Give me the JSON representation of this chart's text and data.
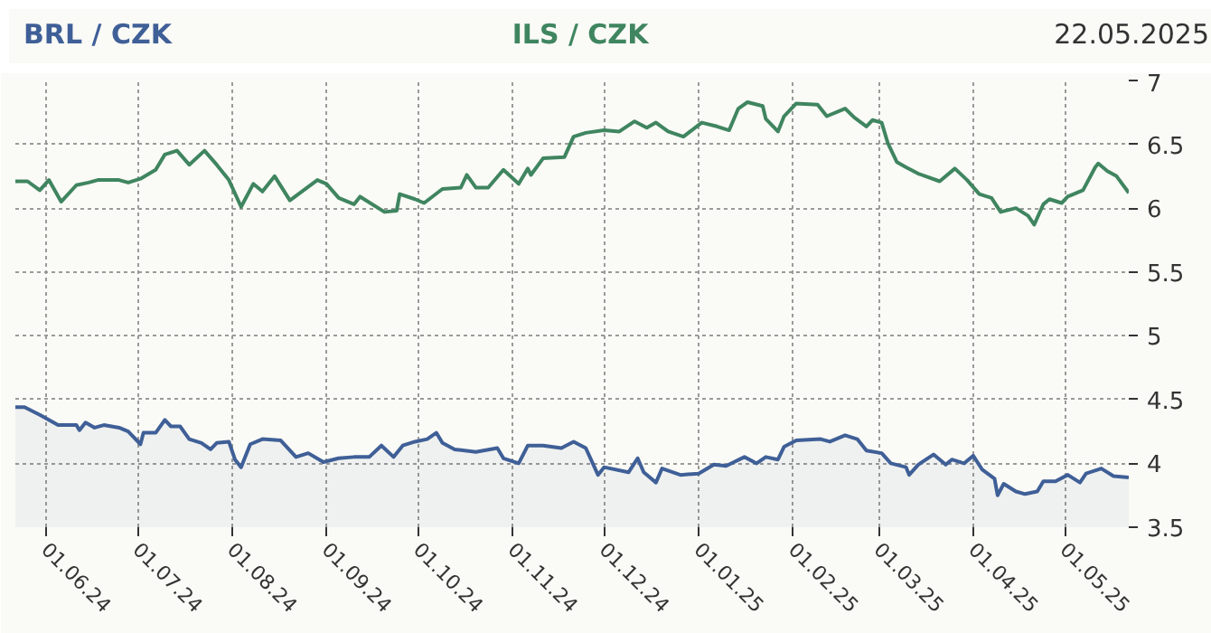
{
  "chart_data": {
    "type": "line",
    "title": "22.05.2025",
    "xlim": [
      "2024-05-22",
      "2025-05-22"
    ],
    "xticks": [
      {
        "value": "2024-06-01",
        "label": "01.06.24"
      },
      {
        "value": "2024-07-01",
        "label": "01.07.24"
      },
      {
        "value": "2024-08-01",
        "label": "01.08.24"
      },
      {
        "value": "2024-09-01",
        "label": "01.09.24"
      },
      {
        "value": "2024-10-01",
        "label": "01.10.24"
      },
      {
        "value": "2024-11-01",
        "label": "01.11.24"
      },
      {
        "value": "2024-12-01",
        "label": "01.12.24"
      },
      {
        "value": "2025-01-01",
        "label": "01.01.25"
      },
      {
        "value": "2025-02-01",
        "label": "01.02.25"
      },
      {
        "value": "2025-03-01",
        "label": "01.03.25"
      },
      {
        "value": "2025-04-01",
        "label": "01.04.25"
      },
      {
        "value": "2025-05-01",
        "label": "01.05.25"
      }
    ],
    "ylim": [
      3.5,
      7
    ],
    "yticks": [
      3.5,
      4,
      4.5,
      5,
      5.5,
      6,
      6.5,
      7
    ],
    "grid": true,
    "marker": "none",
    "line_style": "solid",
    "series": [
      {
        "name": "BRL / CZK",
        "type": "area",
        "color": "#3f5f97",
        "x": [
          "2024-05-22",
          "2024-05-25",
          "2024-05-30",
          "2024-06-05",
          "2024-06-11",
          "2024-06-12",
          "2024-06-14",
          "2024-06-17",
          "2024-06-20",
          "2024-06-25",
          "2024-06-28",
          "2024-07-02",
          "2024-07-03",
          "2024-07-07",
          "2024-07-10",
          "2024-07-12",
          "2024-07-15",
          "2024-07-18",
          "2024-07-22",
          "2024-07-25",
          "2024-07-27",
          "2024-07-31",
          "2024-08-02",
          "2024-08-04",
          "2024-08-07",
          "2024-08-11",
          "2024-08-17",
          "2024-08-22",
          "2024-08-26",
          "2024-08-31",
          "2024-09-05",
          "2024-09-10",
          "2024-09-15",
          "2024-09-19",
          "2024-09-23",
          "2024-09-26",
          "2024-09-30",
          "2024-10-04",
          "2024-10-07",
          "2024-10-09",
          "2024-10-13",
          "2024-10-20",
          "2024-10-27",
          "2024-10-29",
          "2024-11-03",
          "2024-11-06",
          "2024-11-11",
          "2024-11-17",
          "2024-11-21",
          "2024-11-25",
          "2024-11-29",
          "2024-12-01",
          "2024-12-09",
          "2024-12-12",
          "2024-12-14",
          "2024-12-18",
          "2024-12-20",
          "2024-12-26",
          "2025-01-01",
          "2025-01-06",
          "2025-01-10",
          "2025-01-16",
          "2025-01-20",
          "2025-01-23",
          "2025-01-27",
          "2025-01-29",
          "2025-02-02",
          "2025-02-10",
          "2025-02-13",
          "2025-02-18",
          "2025-02-22",
          "2025-02-25",
          "2025-03-02",
          "2025-03-05",
          "2025-03-10",
          "2025-03-11",
          "2025-03-14",
          "2025-03-19",
          "2025-03-23",
          "2025-03-25",
          "2025-03-29",
          "2025-04-01",
          "2025-04-04",
          "2025-04-08",
          "2025-04-09",
          "2025-04-11",
          "2025-04-15",
          "2025-04-18",
          "2025-04-22",
          "2025-04-24",
          "2025-04-28",
          "2025-05-02",
          "2025-05-06",
          "2025-05-08",
          "2025-05-13",
          "2025-05-17",
          "2025-05-22"
        ],
        "values": [
          4.44,
          4.44,
          4.38,
          4.3,
          4.3,
          4.26,
          4.32,
          4.28,
          4.3,
          4.28,
          4.25,
          4.15,
          4.24,
          4.24,
          4.34,
          4.29,
          4.29,
          4.19,
          4.16,
          4.11,
          4.16,
          4.17,
          4.03,
          3.97,
          4.15,
          4.19,
          4.18,
          4.05,
          4.08,
          4.01,
          4.04,
          4.05,
          4.05,
          4.14,
          4.05,
          4.14,
          4.17,
          4.19,
          4.24,
          4.16,
          4.11,
          4.09,
          4.12,
          4.04,
          4.0,
          4.14,
          4.14,
          4.12,
          4.17,
          4.12,
          3.91,
          3.97,
          3.93,
          4.04,
          3.93,
          3.85,
          3.96,
          3.91,
          3.92,
          3.99,
          3.98,
          4.05,
          4.0,
          4.05,
          4.03,
          4.13,
          4.18,
          4.19,
          4.17,
          4.22,
          4.19,
          4.1,
          4.08,
          4.0,
          3.97,
          3.91,
          3.99,
          4.07,
          3.99,
          4.03,
          4.0,
          4.06,
          3.95,
          3.88,
          3.75,
          3.84,
          3.78,
          3.76,
          3.78,
          3.86,
          3.86,
          3.91,
          3.85,
          3.92,
          3.96,
          3.9,
          3.89
        ]
      },
      {
        "name": "ILS / CZK",
        "color": "#3f8560",
        "x": [
          "2024-05-22",
          "2024-05-26",
          "2024-05-30",
          "2024-06-02",
          "2024-06-06",
          "2024-06-11",
          "2024-06-15",
          "2024-06-18",
          "2024-06-25",
          "2024-06-28",
          "2024-07-02",
          "2024-07-07",
          "2024-07-10",
          "2024-07-14",
          "2024-07-18",
          "2024-07-23",
          "2024-07-27",
          "2024-07-31",
          "2024-08-04",
          "2024-08-08",
          "2024-08-11",
          "2024-08-15",
          "2024-08-20",
          "2024-08-29",
          "2024-09-01",
          "2024-09-05",
          "2024-09-10",
          "2024-09-12",
          "2024-09-20",
          "2024-09-24",
          "2024-09-25",
          "2024-09-30",
          "2024-10-03",
          "2024-10-09",
          "2024-10-15",
          "2024-10-17",
          "2024-10-20",
          "2024-10-24",
          "2024-10-29",
          "2024-11-03",
          "2024-11-06",
          "2024-11-07",
          "2024-11-11",
          "2024-11-18",
          "2024-11-21",
          "2024-11-25",
          "2024-12-01",
          "2024-12-06",
          "2024-12-11",
          "2024-12-15",
          "2024-12-18",
          "2024-12-22",
          "2024-12-27",
          "2025-01-02",
          "2025-01-07",
          "2025-01-11",
          "2025-01-14",
          "2025-01-17",
          "2025-01-22",
          "2025-01-23",
          "2025-01-27",
          "2025-01-29",
          "2025-02-02",
          "2025-02-09",
          "2025-02-12",
          "2025-02-18",
          "2025-02-21",
          "2025-02-25",
          "2025-02-27",
          "2025-03-02",
          "2025-03-04",
          "2025-03-07",
          "2025-03-10",
          "2025-03-14",
          "2025-03-21",
          "2025-03-26",
          "2025-03-30",
          "2025-04-03",
          "2025-04-07",
          "2025-04-10",
          "2025-04-15",
          "2025-04-19",
          "2025-04-21",
          "2025-04-24",
          "2025-04-26",
          "2025-04-30",
          "2025-05-02",
          "2025-05-07",
          "2025-05-11",
          "2025-05-12",
          "2025-05-15",
          "2025-05-18",
          "2025-05-22"
        ],
        "values": [
          6.21,
          6.21,
          6.14,
          6.22,
          6.05,
          6.18,
          6.2,
          6.22,
          6.22,
          6.2,
          6.23,
          6.3,
          6.42,
          6.45,
          6.34,
          6.45,
          6.34,
          6.22,
          6.01,
          6.19,
          6.13,
          6.25,
          6.06,
          6.22,
          6.19,
          6.08,
          6.03,
          6.09,
          5.97,
          5.98,
          6.11,
          6.07,
          6.04,
          6.15,
          6.16,
          6.26,
          6.16,
          6.16,
          6.3,
          6.19,
          6.31,
          6.26,
          6.39,
          6.4,
          6.56,
          6.59,
          6.61,
          6.6,
          6.68,
          6.63,
          6.67,
          6.6,
          6.56,
          6.67,
          6.64,
          6.61,
          6.78,
          6.83,
          6.8,
          6.7,
          6.6,
          6.72,
          6.82,
          6.81,
          6.72,
          6.78,
          6.71,
          6.64,
          6.69,
          6.67,
          6.51,
          6.36,
          6.32,
          6.27,
          6.21,
          6.31,
          6.22,
          6.11,
          6.08,
          5.97,
          6.0,
          5.94,
          5.87,
          6.03,
          6.07,
          6.04,
          6.09,
          6.14,
          6.32,
          6.35,
          6.29,
          6.25,
          6.12
        ]
      }
    ]
  }
}
